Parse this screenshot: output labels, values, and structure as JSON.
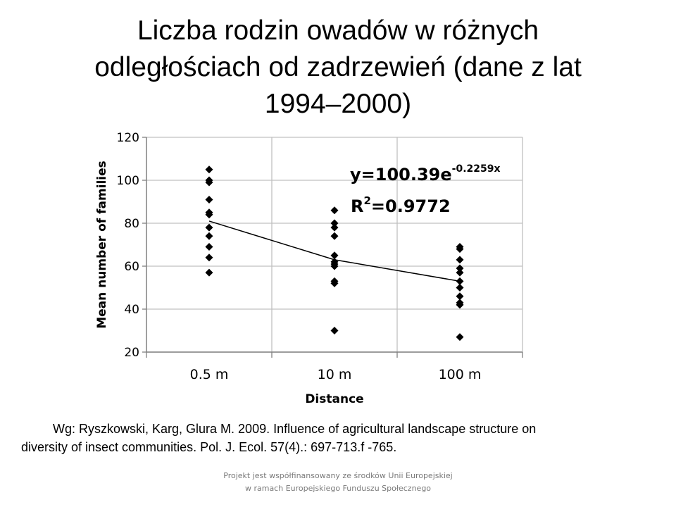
{
  "slide": {
    "title_lines": [
      "Liczba rodzin owadów w różnych",
      "odległościach od zadrzewień (dane z lat",
      "1994–2000)"
    ],
    "citation_lines": [
      "Wg: Ryszkowski, Karg, Glura M. 2009. Influence of agricultural landscape structure on",
      "diversity of insect communities. Pol. J. Ecol. 57(4).: 697-713.f -765."
    ],
    "footer_lines": [
      "Projekt jest współfinansowany ze środków Unii Europejskiej",
      "w ramach Europejskiego Funduszu Społecznego"
    ]
  },
  "chart_data": {
    "type": "scatter",
    "xlabel": "Distance",
    "ylabel": "Mean number of families",
    "categories": [
      "0.5 m",
      "10 m",
      "100 m"
    ],
    "ylim": [
      20,
      120
    ],
    "yticks": [
      20,
      40,
      60,
      80,
      100,
      120
    ],
    "grid": true,
    "points": [
      {
        "x": "0.5 m",
        "y": [
          105,
          100,
          99,
          91,
          85,
          84,
          78,
          74,
          69,
          64,
          57
        ]
      },
      {
        "x": "10 m",
        "y": [
          86,
          80,
          78,
          74,
          65,
          62,
          61,
          60,
          53,
          52,
          30
        ]
      },
      {
        "x": "100 m",
        "y": [
          69,
          68,
          63,
          59,
          57,
          53,
          50,
          46,
          43,
          42,
          27
        ]
      }
    ],
    "trendline": {
      "x": [
        "0.5 m",
        "10 m",
        "100 m"
      ],
      "y": [
        81,
        63,
        53
      ]
    },
    "equation": {
      "base": "y=100.39e",
      "exponent": "-0.2259x"
    },
    "r_squared": {
      "prefix": "R",
      "power": "2",
      "value": "=0.9772"
    },
    "colors": {
      "marker": "#000000",
      "grid": "#c0c0c0",
      "axis": "#808080"
    }
  }
}
